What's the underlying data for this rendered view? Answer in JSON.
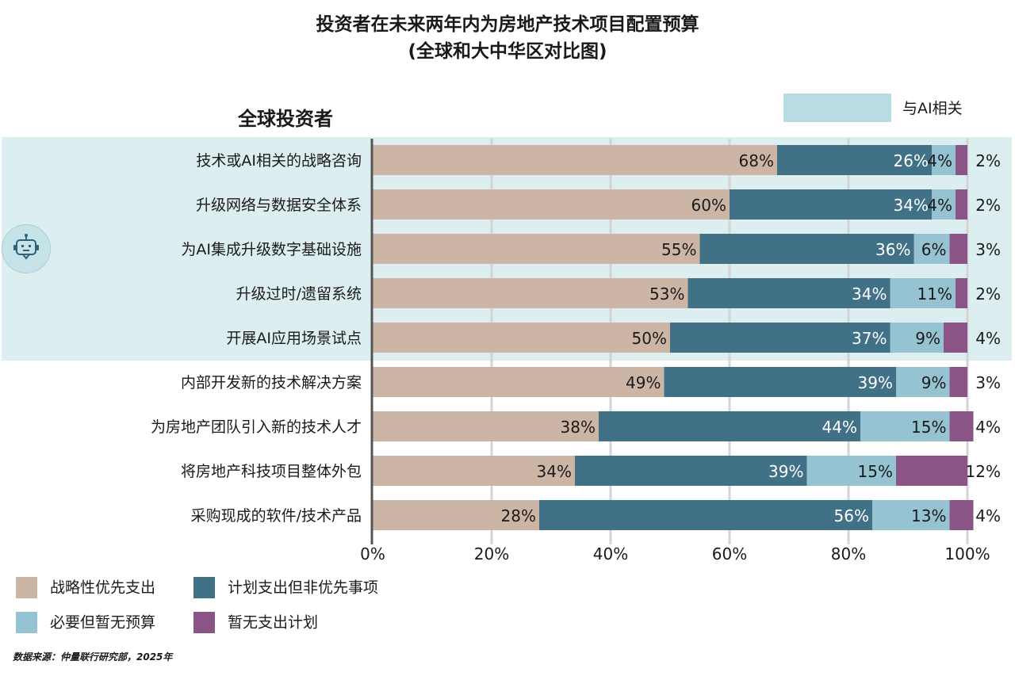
{
  "title_line1": "投资者在未来两年内为房地产技术项目配置预算",
  "title_line2": "(全球和大中华区对比图)",
  "subtitle": "全球投资者",
  "ai_legend_label": "与AI相关",
  "source": "数据来源：仲量联行研究部，2025年",
  "colors": {
    "strategic_priority": "#cdb5a6",
    "planned_not_priority": "#417186",
    "necessary_no_budget": "#96c3d2",
    "no_plan": "#8b5486",
    "ai_band": "#ddeef1"
  },
  "legend": [
    {
      "label": "战略性优先支出",
      "color": "#cdb5a6"
    },
    {
      "label": "计划支出但非优先事项",
      "color": "#417186"
    },
    {
      "label": "必要但暂无预算",
      "color": "#96c3d2"
    },
    {
      "label": "暂无支出计划",
      "color": "#8b5486"
    }
  ],
  "icon": "robot-chat-icon",
  "chart_data": {
    "type": "bar",
    "orientation": "horizontal",
    "stacked": true,
    "categories": [
      "技术或AI相关的战略咨询",
      "升级网络与数据安全体系",
      "为AI集成升级数字基础设施",
      "升级过时/遗留系统",
      "开展AI应用场景试点",
      "内部开发新的技术解决方案",
      "为房地产团队引入新的技术人才",
      "将房地产科技项目整体外包",
      "采购现成的软件/技术产品"
    ],
    "ai_related": [
      true,
      true,
      true,
      true,
      true,
      false,
      false,
      false,
      false
    ],
    "series": [
      {
        "name": "战略性优先支出",
        "values": [
          68,
          60,
          55,
          53,
          50,
          49,
          38,
          34,
          28
        ]
      },
      {
        "name": "计划支出但非优先事项",
        "values": [
          26,
          34,
          36,
          34,
          37,
          39,
          44,
          39,
          56
        ]
      },
      {
        "name": "必要但暂无预算",
        "values": [
          4,
          4,
          6,
          11,
          9,
          9,
          15,
          15,
          13
        ]
      },
      {
        "name": "暂无支出计划",
        "values": [
          2,
          2,
          3,
          2,
          4,
          3,
          4,
          12,
          4
        ]
      }
    ],
    "xlim": [
      0,
      100
    ],
    "xticks": [
      "0%",
      "20%",
      "40%",
      "60%",
      "80%",
      "100%"
    ],
    "grid": true
  }
}
